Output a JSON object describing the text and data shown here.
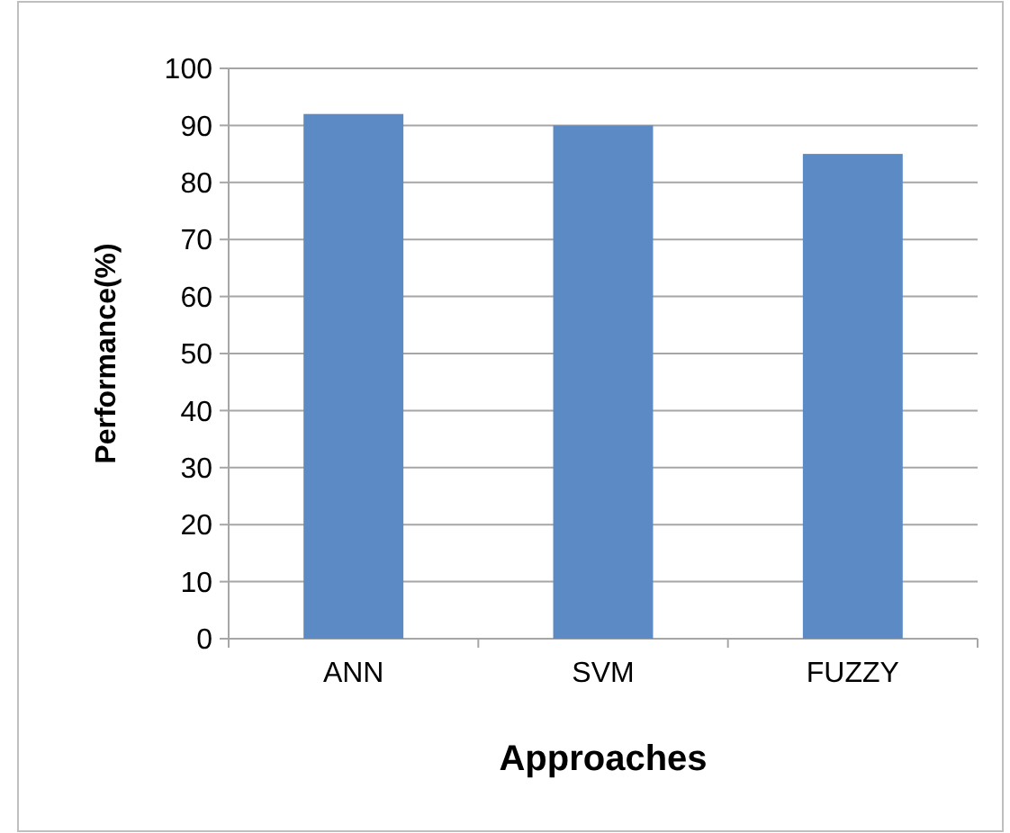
{
  "chart_data": {
    "type": "bar",
    "xlabel": "Approaches",
    "ylabel": "Performance(%)",
    "categories": [
      "ANN",
      "SVM",
      "FUZZY"
    ],
    "values": [
      92,
      90,
      85
    ],
    "color": "#5b8ac5",
    "ylim": [
      0,
      100
    ],
    "yticks": [
      0,
      10,
      20,
      30,
      40,
      50,
      60,
      70,
      80,
      90,
      100
    ],
    "grid": "y"
  }
}
